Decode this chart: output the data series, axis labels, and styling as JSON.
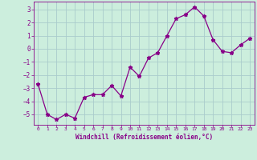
{
  "x": [
    0,
    1,
    2,
    3,
    4,
    5,
    6,
    7,
    8,
    9,
    10,
    11,
    12,
    13,
    14,
    15,
    16,
    17,
    18,
    19,
    20,
    21,
    22,
    23
  ],
  "y": [
    -2.7,
    -5.0,
    -5.4,
    -5.0,
    -5.3,
    -3.7,
    -3.5,
    -3.5,
    -2.8,
    -3.6,
    -1.4,
    -2.1,
    -0.7,
    -0.3,
    1.0,
    2.3,
    2.6,
    3.2,
    2.5,
    0.7,
    -0.2,
    -0.3,
    0.3,
    0.8
  ],
  "line_color": "#880088",
  "marker": "*",
  "bg_color": "#cceedd",
  "grid_color": "#aacccc",
  "xlabel": "Windchill (Refroidissement éolien,°C)",
  "xlabel_color": "#880088",
  "tick_color": "#880088",
  "ylim": [
    -5.8,
    3.6
  ],
  "xlim": [
    -0.5,
    23.5
  ],
  "yticks": [
    -5,
    -4,
    -3,
    -2,
    -1,
    0,
    1,
    2,
    3
  ],
  "xticks": [
    0,
    1,
    2,
    3,
    4,
    5,
    6,
    7,
    8,
    9,
    10,
    11,
    12,
    13,
    14,
    15,
    16,
    17,
    18,
    19,
    20,
    21,
    22,
    23
  ],
  "xtick_labels": [
    "0",
    "1",
    "2",
    "3",
    "4",
    "5",
    "6",
    "7",
    "8",
    "9",
    "10",
    "11",
    "12",
    "13",
    "14",
    "15",
    "16",
    "17",
    "18",
    "19",
    "20",
    "21",
    "22",
    "23"
  ]
}
